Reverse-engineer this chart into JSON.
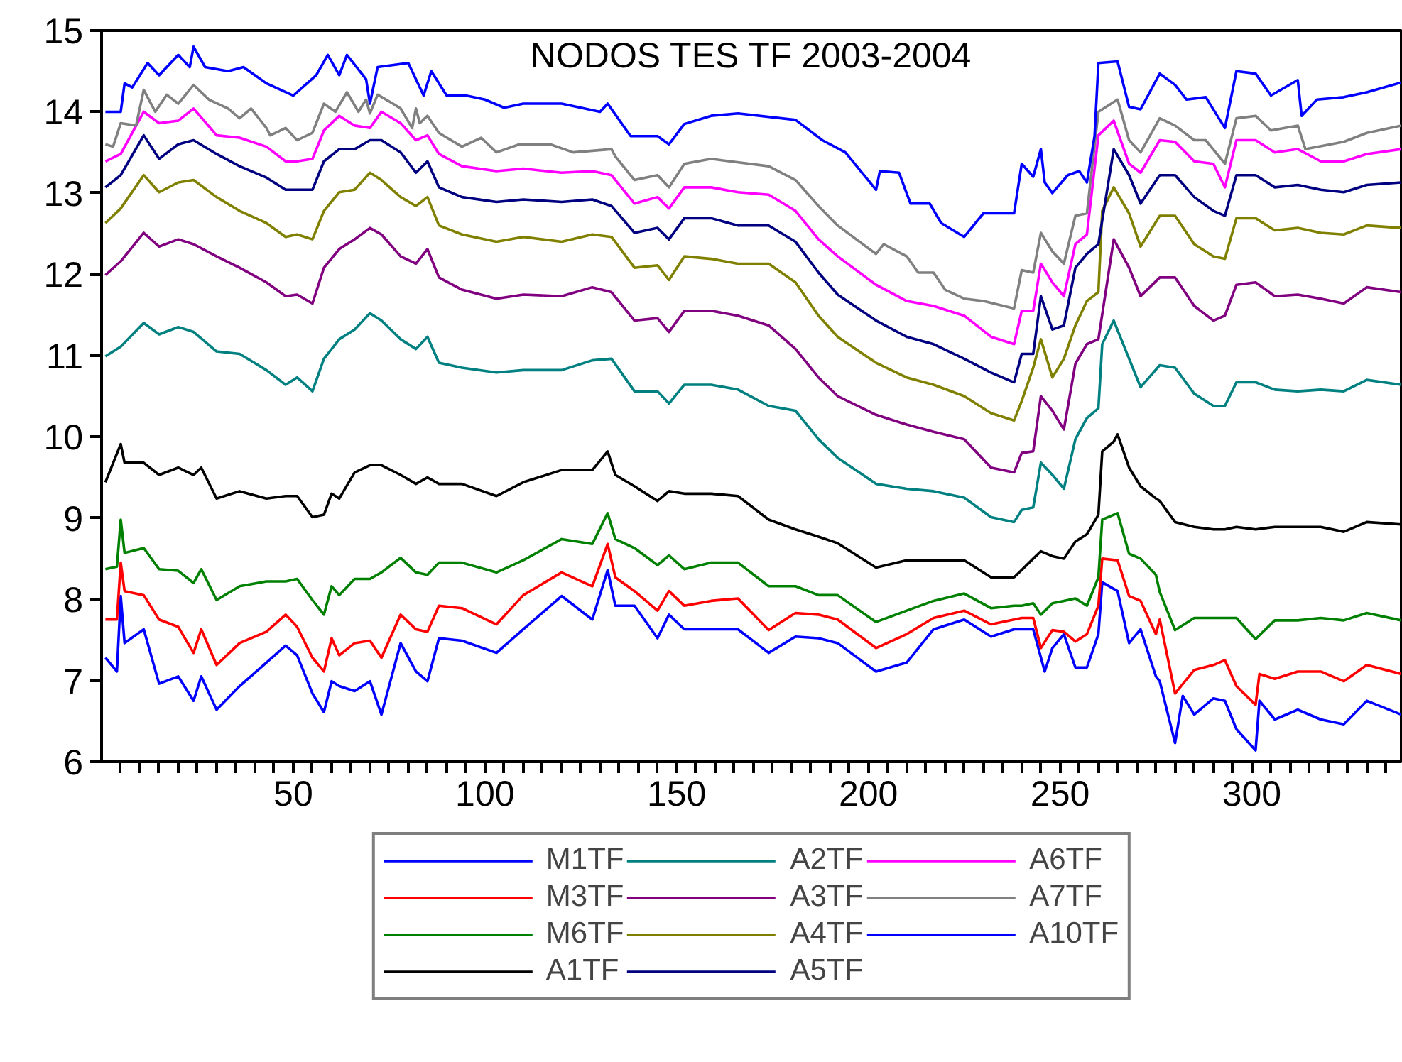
{
  "chart_data": {
    "type": "line",
    "title": "NODOS TES TF 2003-2004",
    "xlim": [
      0,
      339
    ],
    "ylim": [
      6,
      15
    ],
    "xticks": [
      {
        "value": 5,
        "label": null
      },
      {
        "value": 10,
        "label": null
      },
      {
        "value": 15,
        "label": null
      },
      {
        "value": 20,
        "label": null
      },
      {
        "value": 25,
        "label": null
      },
      {
        "value": 30,
        "label": null
      },
      {
        "value": 35,
        "label": null
      },
      {
        "value": 40,
        "label": null
      },
      {
        "value": 45,
        "label": null
      },
      50,
      {
        "value": 55,
        "label": null
      },
      {
        "value": 60,
        "label": null
      },
      {
        "value": 65,
        "label": null
      },
      {
        "value": 70,
        "label": null
      },
      {
        "value": 75,
        "label": null
      },
      {
        "value": 80,
        "label": null
      },
      {
        "value": 85,
        "label": null
      },
      {
        "value": 90,
        "label": null
      },
      {
        "value": 95,
        "label": null
      },
      100,
      {
        "value": 105,
        "label": null
      },
      {
        "value": 110,
        "label": null
      },
      {
        "value": 115,
        "label": null
      },
      {
        "value": 120,
        "label": null
      },
      {
        "value": 125,
        "label": null
      },
      {
        "value": 130,
        "label": null
      },
      {
        "value": 135,
        "label": null
      },
      {
        "value": 140,
        "label": null
      },
      {
        "value": 145,
        "label": null
      },
      150,
      {
        "value": 155,
        "label": null
      },
      {
        "value": 160,
        "label": null
      },
      {
        "value": 165,
        "label": null
      },
      {
        "value": 170,
        "label": null
      },
      {
        "value": 175,
        "label": null
      },
      {
        "value": 180,
        "label": null
      },
      {
        "value": 185,
        "label": null
      },
      {
        "value": 190,
        "label": null
      },
      {
        "value": 195,
        "label": null
      },
      200,
      {
        "value": 205,
        "label": null
      },
      {
        "value": 210,
        "label": null
      },
      {
        "value": 215,
        "label": null
      },
      {
        "value": 220,
        "label": null
      },
      {
        "value": 225,
        "label": null
      },
      {
        "value": 230,
        "label": null
      },
      {
        "value": 235,
        "label": null
      },
      {
        "value": 240,
        "label": null
      },
      {
        "value": 245,
        "label": null
      },
      250,
      {
        "value": 255,
        "label": null
      },
      {
        "value": 260,
        "label": null
      },
      {
        "value": 265,
        "label": null
      },
      {
        "value": 270,
        "label": null
      },
      {
        "value": 275,
        "label": null
      },
      {
        "value": 280,
        "label": null
      },
      {
        "value": 285,
        "label": null
      },
      {
        "value": 290,
        "label": null
      },
      {
        "value": 295,
        "label": null
      },
      300,
      {
        "value": 305,
        "label": null
      },
      {
        "value": 310,
        "label": null
      },
      {
        "value": 315,
        "label": null
      },
      {
        "value": 320,
        "label": null
      },
      {
        "value": 325,
        "label": null
      },
      {
        "value": 330,
        "label": null
      },
      {
        "value": 335,
        "label": null
      }
    ],
    "yticks": [
      6,
      7,
      8,
      9,
      10,
      11,
      12,
      13,
      14,
      15
    ],
    "legend": "bottom",
    "series": [
      {
        "name": "M1TF",
        "color": "#0000ff",
        "x": [
          1,
          4,
          5,
          6,
          11,
          15,
          20,
          24,
          26,
          30,
          36,
          43,
          48,
          51,
          55,
          58,
          60,
          62,
          66,
          70,
          73,
          78,
          82,
          85,
          88,
          94,
          103,
          110,
          120,
          128,
          132,
          134,
          139,
          145,
          148,
          152,
          159,
          166,
          174,
          181,
          187,
          192,
          202,
          210,
          217,
          225,
          232,
          238,
          240,
          243,
          246,
          248,
          251,
          254,
          257,
          260,
          261,
          265,
          268,
          271,
          275,
          276,
          280,
          282,
          285,
          290,
          293,
          296,
          301,
          302,
          306,
          312,
          318,
          324,
          330,
          339
        ],
        "values": [
          7.28,
          7.11,
          8.04,
          7.46,
          7.63,
          6.96,
          7.05,
          6.75,
          7.05,
          6.64,
          6.93,
          7.22,
          7.43,
          7.31,
          6.84,
          6.61,
          6.99,
          6.93,
          6.87,
          6.99,
          6.58,
          7.46,
          7.11,
          6.99,
          7.52,
          7.49,
          7.34,
          7.63,
          8.04,
          7.75,
          8.36,
          7.92,
          7.92,
          7.52,
          7.81,
          7.63,
          7.63,
          7.63,
          7.34,
          7.54,
          7.52,
          7.46,
          7.11,
          7.22,
          7.63,
          7.75,
          7.54,
          7.63,
          7.63,
          7.63,
          7.11,
          7.4,
          7.57,
          7.16,
          7.16,
          7.57,
          8.21,
          8.1,
          7.46,
          7.63,
          7.05,
          6.99,
          6.23,
          6.81,
          6.58,
          6.78,
          6.75,
          6.4,
          6.14,
          6.75,
          6.52,
          6.64,
          6.52,
          6.46,
          6.75,
          6.58
        ]
      },
      {
        "name": "M3TF",
        "color": "#ff0000",
        "x": [
          1,
          4,
          5,
          6,
          11,
          15,
          20,
          24,
          26,
          30,
          36,
          43,
          48,
          51,
          55,
          58,
          60,
          62,
          66,
          70,
          73,
          78,
          82,
          85,
          88,
          94,
          103,
          110,
          120,
          128,
          132,
          134,
          139,
          145,
          148,
          152,
          159,
          166,
          174,
          181,
          187,
          192,
          202,
          210,
          217,
          225,
          232,
          238,
          240,
          243,
          245,
          248,
          251,
          254,
          257,
          260,
          261,
          265,
          268,
          271,
          275,
          276,
          280,
          285,
          290,
          293,
          296,
          301,
          302,
          306,
          312,
          318,
          324,
          330,
          339
        ],
        "values": [
          7.75,
          7.75,
          8.45,
          8.1,
          8.05,
          7.75,
          7.66,
          7.34,
          7.63,
          7.19,
          7.46,
          7.6,
          7.81,
          7.66,
          7.28,
          7.11,
          7.52,
          7.31,
          7.46,
          7.49,
          7.28,
          7.81,
          7.63,
          7.6,
          7.92,
          7.89,
          7.69,
          8.05,
          8.33,
          8.16,
          8.68,
          8.27,
          8.1,
          7.86,
          8.1,
          7.92,
          7.98,
          8.01,
          7.62,
          7.83,
          7.81,
          7.75,
          7.4,
          7.57,
          7.77,
          7.86,
          7.69,
          7.75,
          7.77,
          7.77,
          7.4,
          7.62,
          7.6,
          7.48,
          7.57,
          7.92,
          8.5,
          8.48,
          8.04,
          7.98,
          7.57,
          7.75,
          6.84,
          7.13,
          7.19,
          7.25,
          6.93,
          6.7,
          7.08,
          7.02,
          7.11,
          7.11,
          6.99,
          7.19,
          7.08
        ]
      },
      {
        "name": "M6TF",
        "color": "#008000",
        "x": [
          1,
          4,
          5,
          6,
          11,
          15,
          20,
          24,
          26,
          30,
          36,
          43,
          48,
          51,
          55,
          58,
          60,
          62,
          66,
          70,
          73,
          78,
          82,
          85,
          88,
          94,
          103,
          110,
          120,
          128,
          132,
          134,
          139,
          145,
          148,
          152,
          159,
          166,
          174,
          181,
          187,
          192,
          202,
          210,
          217,
          225,
          232,
          238,
          240,
          243,
          245,
          248,
          251,
          254,
          257,
          260,
          261,
          265,
          268,
          271,
          275,
          276,
          280,
          285,
          290,
          293,
          296,
          301,
          306,
          312,
          318,
          324,
          330,
          339
        ],
        "values": [
          8.37,
          8.4,
          8.98,
          8.57,
          8.63,
          8.37,
          8.35,
          8.2,
          8.37,
          7.99,
          8.16,
          8.22,
          8.22,
          8.25,
          7.99,
          7.81,
          8.16,
          8.05,
          8.25,
          8.25,
          8.33,
          8.51,
          8.33,
          8.3,
          8.45,
          8.45,
          8.33,
          8.48,
          8.74,
          8.68,
          9.06,
          8.74,
          8.63,
          8.42,
          8.54,
          8.37,
          8.45,
          8.45,
          8.16,
          8.16,
          8.05,
          8.05,
          7.72,
          7.86,
          7.98,
          8.07,
          7.89,
          7.92,
          7.92,
          7.95,
          7.81,
          7.95,
          7.98,
          8.01,
          7.92,
          8.27,
          8.98,
          9.06,
          8.56,
          8.5,
          8.3,
          8.09,
          7.62,
          7.77,
          7.77,
          7.77,
          7.77,
          7.51,
          7.74,
          7.74,
          7.77,
          7.74,
          7.83,
          7.74
        ]
      },
      {
        "name": "A1TF",
        "color": "#000000",
        "x": [
          1,
          5,
          6,
          11,
          15,
          20,
          24,
          26,
          30,
          36,
          43,
          48,
          51,
          55,
          58,
          60,
          62,
          66,
          70,
          73,
          78,
          82,
          85,
          88,
          94,
          103,
          110,
          120,
          128,
          132,
          134,
          139,
          145,
          148,
          152,
          159,
          166,
          174,
          181,
          187,
          192,
          202,
          210,
          217,
          225,
          232,
          238,
          240,
          243,
          245,
          248,
          251,
          254,
          257,
          260,
          261,
          264,
          265,
          268,
          271,
          275,
          276,
          280,
          285,
          290,
          293,
          296,
          301,
          306,
          312,
          318,
          324,
          330,
          339
        ],
        "values": [
          9.44,
          9.91,
          9.68,
          9.68,
          9.53,
          9.62,
          9.53,
          9.62,
          9.24,
          9.33,
          9.24,
          9.27,
          9.27,
          9.01,
          9.04,
          9.3,
          9.24,
          9.56,
          9.65,
          9.65,
          9.53,
          9.42,
          9.5,
          9.42,
          9.42,
          9.27,
          9.44,
          9.59,
          9.59,
          9.82,
          9.53,
          9.39,
          9.21,
          9.33,
          9.3,
          9.3,
          9.27,
          8.98,
          8.86,
          8.77,
          8.69,
          8.39,
          8.48,
          8.48,
          8.48,
          8.27,
          8.27,
          8.36,
          8.5,
          8.59,
          8.53,
          8.5,
          8.71,
          8.8,
          9.04,
          9.82,
          9.94,
          10.03,
          9.62,
          9.39,
          9.24,
          9.21,
          8.95,
          8.89,
          8.86,
          8.86,
          8.89,
          8.86,
          8.89,
          8.89,
          8.89,
          8.83,
          8.95,
          8.92
        ]
      },
      {
        "name": "A2TF",
        "color": "#008080",
        "x": [
          1,
          5,
          11,
          15,
          20,
          24,
          30,
          36,
          43,
          48,
          51,
          55,
          58,
          62,
          66,
          70,
          73,
          78,
          82,
          85,
          88,
          94,
          103,
          110,
          120,
          128,
          133,
          139,
          145,
          148,
          152,
          159,
          166,
          174,
          181,
          187,
          192,
          202,
          210,
          217,
          225,
          232,
          238,
          240,
          243,
          245,
          248,
          251,
          254,
          257,
          260,
          261,
          264,
          268,
          271,
          276,
          280,
          285,
          290,
          293,
          296,
          301,
          306,
          312,
          318,
          324,
          330,
          339
        ],
        "values": [
          10.99,
          11.11,
          11.4,
          11.26,
          11.35,
          11.29,
          11.05,
          11.02,
          10.82,
          10.64,
          10.73,
          10.56,
          10.96,
          11.2,
          11.32,
          11.52,
          11.43,
          11.2,
          11.08,
          11.23,
          10.91,
          10.85,
          10.79,
          10.82,
          10.82,
          10.94,
          10.96,
          10.56,
          10.56,
          10.41,
          10.64,
          10.64,
          10.58,
          10.38,
          10.32,
          9.97,
          9.74,
          9.42,
          9.36,
          9.33,
          9.25,
          9.01,
          8.95,
          9.1,
          9.13,
          9.68,
          9.53,
          9.36,
          9.97,
          10.23,
          10.35,
          11.14,
          11.43,
          10.96,
          10.61,
          10.88,
          10.85,
          10.53,
          10.38,
          10.38,
          10.67,
          10.67,
          10.58,
          10.56,
          10.58,
          10.56,
          10.7,
          10.64
        ]
      },
      {
        "name": "A3TF",
        "color": "#800080",
        "x": [
          1,
          5,
          11,
          15,
          20,
          24,
          30,
          36,
          43,
          48,
          51,
          55,
          58,
          62,
          66,
          70,
          73,
          78,
          82,
          85,
          88,
          94,
          103,
          110,
          120,
          128,
          133,
          139,
          145,
          148,
          152,
          159,
          166,
          174,
          181,
          187,
          192,
          202,
          210,
          217,
          225,
          232,
          238,
          240,
          243,
          245,
          248,
          251,
          254,
          257,
          260,
          264,
          268,
          271,
          276,
          280,
          285,
          290,
          293,
          296,
          301,
          306,
          312,
          318,
          324,
          330,
          339
        ],
        "values": [
          11.99,
          12.16,
          12.51,
          12.34,
          12.43,
          12.37,
          12.22,
          12.08,
          11.9,
          11.73,
          11.75,
          11.64,
          12.08,
          12.31,
          12.43,
          12.57,
          12.49,
          12.22,
          12.13,
          12.31,
          11.96,
          11.81,
          11.7,
          11.75,
          11.73,
          11.84,
          11.78,
          11.43,
          11.46,
          11.29,
          11.55,
          11.55,
          11.49,
          11.37,
          11.08,
          10.73,
          10.5,
          10.27,
          10.15,
          10.06,
          9.97,
          9.62,
          9.56,
          9.8,
          9.82,
          10.5,
          10.32,
          10.09,
          10.9,
          11.14,
          11.2,
          12.43,
          12.08,
          11.73,
          11.96,
          11.96,
          11.61,
          11.43,
          11.49,
          11.87,
          11.9,
          11.73,
          11.75,
          11.7,
          11.64,
          11.84,
          11.78
        ]
      },
      {
        "name": "A4TF",
        "color": "#808000",
        "x": [
          1,
          5,
          11,
          15,
          20,
          24,
          30,
          36,
          43,
          48,
          51,
          55,
          58,
          62,
          66,
          70,
          73,
          78,
          82,
          85,
          88,
          94,
          103,
          110,
          120,
          128,
          133,
          139,
          145,
          148,
          152,
          159,
          166,
          174,
          181,
          187,
          192,
          202,
          210,
          217,
          225,
          232,
          238,
          240,
          243,
          245,
          248,
          251,
          254,
          257,
          260,
          261,
          264,
          268,
          271,
          276,
          280,
          285,
          290,
          293,
          296,
          301,
          306,
          312,
          318,
          324,
          330,
          339
        ],
        "values": [
          12.63,
          12.81,
          13.22,
          13.01,
          13.13,
          13.16,
          12.95,
          12.78,
          12.63,
          12.46,
          12.49,
          12.43,
          12.78,
          13.01,
          13.04,
          13.25,
          13.16,
          12.95,
          12.84,
          12.95,
          12.6,
          12.49,
          12.4,
          12.46,
          12.4,
          12.49,
          12.46,
          12.08,
          12.11,
          11.93,
          12.22,
          12.19,
          12.13,
          12.13,
          11.9,
          11.49,
          11.23,
          10.91,
          10.73,
          10.64,
          10.5,
          10.29,
          10.2,
          10.44,
          10.85,
          11.2,
          10.73,
          10.96,
          11.37,
          11.67,
          11.78,
          12.78,
          13.07,
          12.75,
          12.34,
          12.72,
          12.72,
          12.37,
          12.22,
          12.19,
          12.69,
          12.69,
          12.54,
          12.57,
          12.51,
          12.49,
          12.6,
          12.57
        ]
      },
      {
        "name": "A5TF",
        "color": "#000080",
        "x": [
          1,
          5,
          11,
          15,
          20,
          24,
          30,
          36,
          43,
          48,
          51,
          55,
          58,
          62,
          66,
          70,
          73,
          78,
          82,
          85,
          88,
          94,
          103,
          110,
          120,
          128,
          133,
          139,
          145,
          148,
          152,
          159,
          166,
          174,
          181,
          187,
          192,
          202,
          210,
          217,
          225,
          232,
          238,
          240,
          243,
          245,
          248,
          251,
          254,
          257,
          260,
          264,
          268,
          271,
          276,
          280,
          285,
          290,
          293,
          296,
          301,
          306,
          312,
          318,
          324,
          330,
          339
        ],
        "values": [
          13.07,
          13.22,
          13.71,
          13.42,
          13.6,
          13.65,
          13.48,
          13.33,
          13.19,
          13.04,
          13.04,
          13.04,
          13.39,
          13.54,
          13.54,
          13.65,
          13.65,
          13.5,
          13.25,
          13.39,
          13.07,
          12.95,
          12.89,
          12.92,
          12.89,
          12.92,
          12.84,
          12.51,
          12.57,
          12.43,
          12.69,
          12.69,
          12.6,
          12.6,
          12.4,
          12.02,
          11.75,
          11.43,
          11.23,
          11.14,
          10.96,
          10.79,
          10.67,
          11.02,
          11.02,
          11.73,
          11.32,
          11.37,
          12.08,
          12.25,
          12.37,
          13.54,
          13.22,
          12.87,
          13.22,
          13.22,
          12.95,
          12.78,
          12.72,
          13.22,
          13.22,
          13.07,
          13.1,
          13.04,
          13.01,
          13.1,
          13.13
        ]
      },
      {
        "name": "A6TF",
        "color": "#ff00ff",
        "x": [
          1,
          5,
          11,
          15,
          20,
          24,
          30,
          36,
          43,
          48,
          51,
          55,
          58,
          62,
          66,
          70,
          73,
          78,
          82,
          85,
          88,
          94,
          103,
          110,
          120,
          128,
          133,
          139,
          145,
          148,
          152,
          159,
          166,
          174,
          181,
          187,
          192,
          202,
          210,
          217,
          225,
          232,
          238,
          240,
          243,
          245,
          248,
          251,
          254,
          257,
          260,
          264,
          268,
          271,
          276,
          280,
          285,
          290,
          293,
          296,
          301,
          306,
          312,
          318,
          324,
          330,
          339
        ],
        "values": [
          13.39,
          13.48,
          14.0,
          13.86,
          13.89,
          14.04,
          13.71,
          13.68,
          13.57,
          13.39,
          13.39,
          13.42,
          13.77,
          13.95,
          13.83,
          13.8,
          14.0,
          13.86,
          13.65,
          13.71,
          13.48,
          13.33,
          13.27,
          13.3,
          13.25,
          13.27,
          13.22,
          12.87,
          12.95,
          12.81,
          13.07,
          13.07,
          13.01,
          12.98,
          12.78,
          12.43,
          12.22,
          11.87,
          11.67,
          11.61,
          11.49,
          11.23,
          11.14,
          11.55,
          11.55,
          12.13,
          11.9,
          11.73,
          12.37,
          12.49,
          13.71,
          13.89,
          13.36,
          13.25,
          13.65,
          13.63,
          13.39,
          13.36,
          13.07,
          13.65,
          13.65,
          13.5,
          13.54,
          13.39,
          13.39,
          13.48,
          13.54
        ]
      },
      {
        "name": "A7TF",
        "color": "#808080",
        "x": [
          1,
          3,
          5,
          9,
          11,
          14,
          17,
          20,
          24,
          28,
          33,
          36,
          39,
          43,
          44,
          48,
          51,
          55,
          58,
          61,
          64,
          67,
          69,
          70,
          72,
          76,
          78,
          81,
          82,
          83,
          85,
          88,
          94,
          99,
          103,
          109,
          117,
          123,
          133,
          134,
          139,
          145,
          148,
          152,
          159,
          174,
          181,
          187,
          192,
          202,
          204,
          210,
          213,
          217,
          220,
          225,
          230,
          238,
          240,
          243,
          245,
          248,
          251,
          254,
          257,
          260,
          265,
          268,
          271,
          276,
          280,
          285,
          288,
          293,
          296,
          301,
          305,
          312,
          314,
          324,
          330,
          339
        ],
        "values": [
          13.6,
          13.57,
          13.86,
          13.83,
          14.27,
          14.0,
          14.21,
          14.1,
          14.33,
          14.15,
          14.04,
          13.92,
          14.04,
          13.8,
          13.71,
          13.8,
          13.65,
          13.74,
          14.1,
          14.0,
          14.24,
          14.0,
          14.15,
          13.98,
          14.21,
          14.1,
          14.04,
          13.8,
          14.04,
          13.86,
          13.95,
          13.74,
          13.57,
          13.68,
          13.5,
          13.6,
          13.6,
          13.5,
          13.54,
          13.45,
          13.16,
          13.22,
          13.07,
          13.36,
          13.42,
          13.33,
          13.16,
          12.84,
          12.6,
          12.25,
          12.37,
          12.22,
          12.02,
          12.02,
          11.81,
          11.7,
          11.67,
          11.58,
          12.05,
          12.02,
          12.51,
          12.28,
          12.13,
          12.72,
          12.75,
          14.0,
          14.15,
          13.65,
          13.5,
          13.92,
          13.83,
          13.65,
          13.65,
          13.36,
          13.92,
          13.95,
          13.77,
          13.83,
          13.54,
          13.63,
          13.74,
          13.83
        ]
      },
      {
        "name": "A10TF",
        "color": "#0000ff",
        "x": [
          1,
          5,
          6,
          8,
          12,
          15,
          20,
          23,
          24,
          27,
          33,
          37,
          43,
          50,
          56,
          59,
          62,
          64,
          69,
          70,
          72,
          80,
          84,
          86,
          90,
          95,
          100,
          105,
          110,
          120,
          130,
          132,
          138,
          145,
          148,
          152,
          159,
          166,
          181,
          188,
          194,
          202,
          203,
          208,
          211,
          216,
          219,
          225,
          230,
          238,
          240,
          243,
          245,
          246,
          248,
          252,
          255,
          257,
          259,
          260,
          265,
          268,
          271,
          276,
          280,
          283,
          288,
          293,
          296,
          301,
          305,
          312,
          313,
          317,
          324,
          330,
          339
        ],
        "values": [
          14.0,
          14.0,
          14.35,
          14.3,
          14.6,
          14.45,
          14.7,
          14.55,
          14.8,
          14.55,
          14.5,
          14.55,
          14.35,
          14.2,
          14.45,
          14.7,
          14.45,
          14.7,
          14.4,
          14.1,
          14.55,
          14.6,
          14.2,
          14.5,
          14.2,
          14.2,
          14.15,
          14.05,
          14.1,
          14.1,
          14.0,
          14.1,
          13.7,
          13.7,
          13.6,
          13.85,
          13.95,
          13.98,
          13.9,
          13.65,
          13.5,
          13.04,
          13.27,
          13.25,
          12.87,
          12.87,
          12.63,
          12.46,
          12.75,
          12.75,
          13.36,
          13.2,
          13.54,
          13.13,
          13.0,
          13.22,
          13.27,
          13.13,
          13.7,
          14.6,
          14.62,
          14.06,
          14.03,
          14.47,
          14.33,
          14.15,
          14.18,
          13.8,
          14.5,
          14.47,
          14.2,
          14.39,
          13.95,
          14.15,
          14.18,
          14.24,
          14.36
        ]
      }
    ]
  }
}
